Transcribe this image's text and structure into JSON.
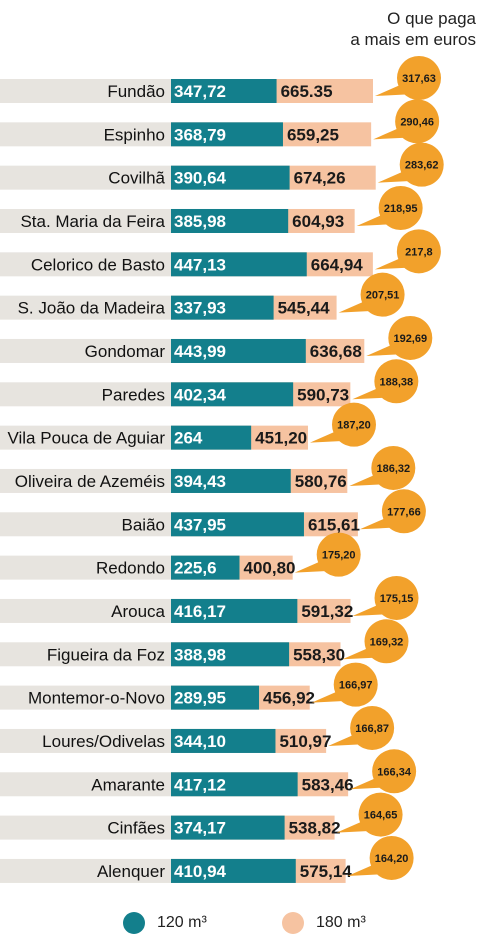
{
  "header": {
    "line1": "O que paga",
    "line2": "a mais em euros"
  },
  "legend": {
    "s120": "120 m³",
    "s180": "180 m³"
  },
  "colors": {
    "teal": "#137f8c",
    "peach": "#f6c3a1",
    "gray": "#e7e4df",
    "orange": "#f2a12b"
  },
  "chart_data": {
    "type": "bar",
    "categories": [
      "Fundão",
      "Espinho",
      "Covilhã",
      "Sta. Maria da Feira",
      "Celorico de Basto",
      "S. João da Madeira",
      "Gondomar",
      "Paredes",
      "Vila Pouca de Aguiar",
      "Oliveira de Azeméis",
      "Baião",
      "Redondo",
      "Arouca",
      "Figueira da Foz",
      "Montemor-o-Novo",
      "Loures/Odivelas",
      "Amarante",
      "Cinfães",
      "Alenquer"
    ],
    "series": [
      {
        "name": "120 m³",
        "values": [
          347.72,
          368.79,
          390.64,
          385.98,
          447.13,
          337.93,
          443.99,
          402.34,
          264,
          394.43,
          437.95,
          225.6,
          416.17,
          388.98,
          289.95,
          344.1,
          417.12,
          374.17,
          410.94
        ],
        "labels": [
          "347,72",
          "368,79",
          "390,64",
          "385,98",
          "447,13",
          "337,93",
          "443,99",
          "402,34",
          "264",
          "394,43",
          "437,95",
          "225,6",
          "416,17",
          "388,98",
          "289,95",
          "344,10",
          "417,12",
          "374,17",
          "410,94"
        ]
      },
      {
        "name": "180 m³",
        "values": [
          665.35,
          659.25,
          674.26,
          604.93,
          664.94,
          545.44,
          636.68,
          590.73,
          451.2,
          580.76,
          615.61,
          400.8,
          591.32,
          558.3,
          456.92,
          510.97,
          583.46,
          538.82,
          575.14
        ],
        "labels": [
          "665.35",
          "659,25",
          "674,26",
          "604,93",
          "664,94",
          "545,44",
          "636,68",
          "590,73",
          "451,20",
          "580,76",
          "615,61",
          "400,80",
          "591,32",
          "558,30",
          "456,92",
          "510,97",
          "583,46",
          "538,82",
          "575,14"
        ]
      }
    ],
    "difference": {
      "values": [
        317.63,
        290.46,
        283.62,
        218.95,
        217.8,
        207.51,
        192.69,
        188.38,
        187.2,
        186.32,
        177.66,
        175.2,
        175.15,
        169.32,
        166.97,
        166.87,
        166.34,
        164.65,
        164.2
      ],
      "labels": [
        "317,63",
        "290,46",
        "283,62",
        "218,95",
        "217,8",
        "207,51",
        "192,69",
        "188,38",
        "187,20",
        "186,32",
        "177,66",
        "175,20",
        "175,15",
        "169,32",
        "166,97",
        "166,87",
        "166,34",
        "164,65",
        "164,20"
      ]
    }
  }
}
